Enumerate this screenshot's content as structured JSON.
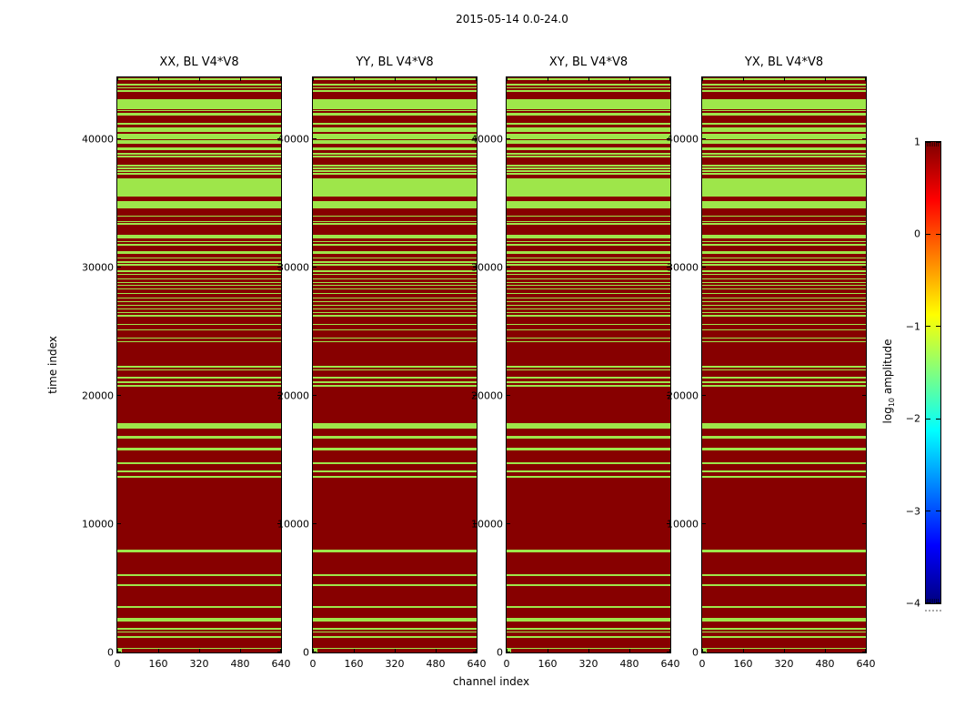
{
  "chart_data": {
    "type": "heatmap",
    "suptitle": "2015-05-14 0.0-24.0",
    "xlabel": "channel index",
    "ylabel": "time index",
    "xlim": [
      0,
      640
    ],
    "ylim": [
      0,
      44800
    ],
    "x_ticks": [
      0,
      160,
      320,
      480,
      640
    ],
    "y_ticks": [
      0,
      10000,
      20000,
      30000,
      40000
    ],
    "panels": [
      {
        "title": "XX, BL V4*V8",
        "pol": "XX"
      },
      {
        "title": "YY, BL V4*V8",
        "pol": "YY"
      },
      {
        "title": "XY, BL V4*V8",
        "pol": "XY"
      },
      {
        "title": "YX, BL V4*V8",
        "pol": "YX"
      }
    ],
    "values": {
      "background_log10_amplitude": 1,
      "stripe_log10_amplitude": -1.3
    },
    "colors": {
      "background": "#870000",
      "stripe": "#9EE64A",
      "axis": "#000000"
    },
    "colorbar": {
      "label_prefix": "log",
      "label_sub": "10",
      "label_suffix": " amplitude",
      "ticks": [
        1,
        0,
        -1,
        -2,
        -3,
        -4
      ],
      "lim": [
        -4,
        1
      ],
      "colormap": "jet",
      "gradient_stops": [
        {
          "pos": 0.0,
          "color": "#000080"
        },
        {
          "pos": 0.125,
          "color": "#0000FF"
        },
        {
          "pos": 0.375,
          "color": "#00FFFF"
        },
        {
          "pos": 0.625,
          "color": "#FFFF00"
        },
        {
          "pos": 0.875,
          "color": "#FF0000"
        },
        {
          "pos": 1.0,
          "color": "#800000"
        }
      ]
    },
    "green_bands_time_index": [
      [
        44560,
        44700
      ],
      [
        44180,
        44320
      ],
      [
        43920,
        44030
      ],
      [
        43670,
        43810
      ],
      [
        42470,
        43100
      ],
      [
        42330,
        42440
      ],
      [
        42150,
        42260
      ],
      [
        41850,
        42060
      ],
      [
        41130,
        41270
      ],
      [
        40560,
        40910
      ],
      [
        40000,
        40420
      ],
      [
        39650,
        39930
      ],
      [
        39100,
        39310
      ],
      [
        38790,
        38930
      ],
      [
        38580,
        38690
      ],
      [
        37880,
        38020
      ],
      [
        37650,
        37760
      ],
      [
        37420,
        37560
      ],
      [
        37230,
        37340
      ],
      [
        35540,
        36950
      ],
      [
        34620,
        35190
      ],
      [
        33930,
        34040
      ],
      [
        33510,
        33620
      ],
      [
        33290,
        33430
      ],
      [
        32220,
        32570
      ],
      [
        31960,
        32070
      ],
      [
        31720,
        31860
      ],
      [
        31060,
        31270
      ],
      [
        30690,
        30800
      ],
      [
        30310,
        30450
      ],
      [
        30100,
        30240
      ],
      [
        29600,
        29740
      ],
      [
        29390,
        29500
      ],
      [
        29040,
        29150
      ],
      [
        28760,
        28870
      ],
      [
        28540,
        28650
      ],
      [
        28260,
        28370
      ],
      [
        27910,
        28020
      ],
      [
        27560,
        27670
      ],
      [
        27270,
        27380
      ],
      [
        26990,
        27100
      ],
      [
        26710,
        26820
      ],
      [
        26420,
        26530
      ],
      [
        26150,
        26290
      ],
      [
        25500,
        25610
      ],
      [
        25080,
        25190
      ],
      [
        24440,
        24550
      ],
      [
        24160,
        24270
      ],
      [
        22190,
        22330
      ],
      [
        21950,
        22060
      ],
      [
        21350,
        21460
      ],
      [
        20990,
        21130
      ],
      [
        20710,
        20850
      ],
      [
        17450,
        17880
      ],
      [
        16660,
        16840
      ],
      [
        15740,
        15920
      ],
      [
        14700,
        14840
      ],
      [
        14060,
        14200
      ],
      [
        13640,
        13780
      ],
      [
        7830,
        8010
      ],
      [
        5920,
        6100
      ],
      [
        5140,
        5320
      ],
      [
        3450,
        3630
      ],
      [
        2400,
        2690
      ],
      [
        1770,
        1910
      ],
      [
        1540,
        1650
      ],
      [
        1130,
        1270
      ],
      [
        260,
        380
      ]
    ],
    "origin_marker": {
      "channel_range": [
        0,
        18
      ],
      "time_range": [
        0,
        280
      ]
    }
  }
}
